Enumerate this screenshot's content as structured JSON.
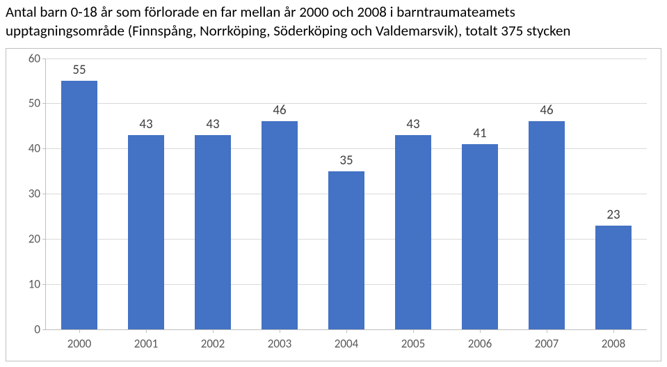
{
  "title": {
    "line1": "Antal barn 0-18 år som förlorade en far mellan år 2000 och 2008 i barntraumateamets",
    "line2": "upptagningsområde (Finnspång, Norrköping, Söderköping och Valdemarsvik), totalt 375 stycken"
  },
  "chart": {
    "type": "bar",
    "categories": [
      "2000",
      "2001",
      "2002",
      "2003",
      "2004",
      "2005",
      "2006",
      "2007",
      "2008"
    ],
    "values": [
      55,
      43,
      43,
      46,
      35,
      43,
      41,
      46,
      23
    ],
    "bar_color": "#4472c4",
    "background_color": "#ffffff",
    "grid_color": "#d9d9d9",
    "axis_color": "#bfbfbf",
    "tick_label_color": "#595959",
    "data_label_color": "#404040",
    "ylim": [
      0,
      60
    ],
    "ytick_step": 10,
    "bar_width": 0.55,
    "tick_fontsize": 17,
    "data_label_fontsize": 19,
    "title_fontsize": 21
  }
}
